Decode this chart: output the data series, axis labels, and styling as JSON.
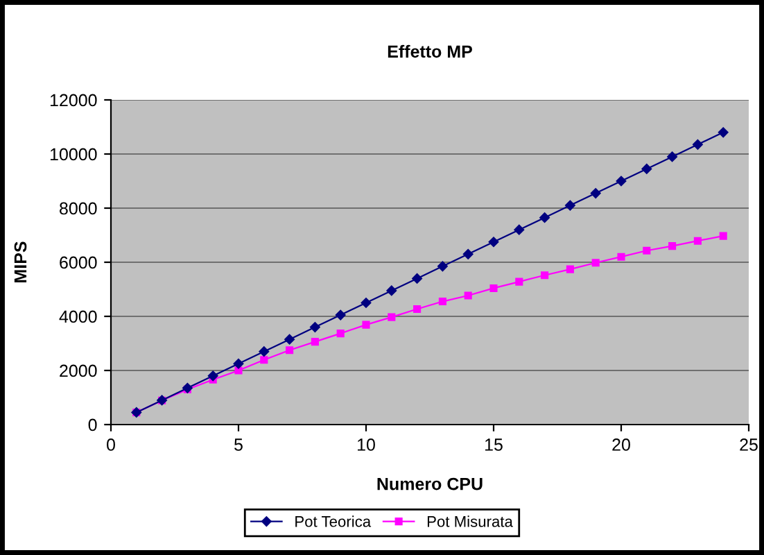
{
  "chart_data": {
    "type": "line",
    "title": "Effetto MP",
    "xlabel": "Numero CPU",
    "ylabel": "MIPS",
    "x": [
      1,
      2,
      3,
      4,
      5,
      6,
      7,
      8,
      9,
      10,
      11,
      12,
      13,
      14,
      15,
      16,
      17,
      18,
      19,
      20,
      21,
      22,
      23,
      24
    ],
    "series": [
      {
        "name": "Pot Teorica",
        "color": "#000080",
        "marker": "diamond",
        "values": [
          450,
          900,
          1350,
          1800,
          2250,
          2700,
          3150,
          3600,
          4050,
          4500,
          4950,
          5400,
          5850,
          6300,
          6750,
          7200,
          7650,
          8100,
          8550,
          9000,
          9450,
          9900,
          10350,
          10800
        ]
      },
      {
        "name": "Pot Misurata",
        "color": "#ff00ff",
        "marker": "square",
        "values": [
          450,
          890,
          1300,
          1660,
          2000,
          2390,
          2750,
          3060,
          3370,
          3690,
          3970,
          4270,
          4550,
          4770,
          5040,
          5280,
          5520,
          5740,
          5980,
          6200,
          6430,
          6600,
          6790,
          6970
        ]
      }
    ],
    "xlim": [
      0,
      25
    ],
    "xticks": [
      0,
      5,
      10,
      15,
      20,
      25
    ],
    "ylim": [
      0,
      12000
    ],
    "yticks": [
      0,
      2000,
      4000,
      6000,
      8000,
      10000,
      12000
    ],
    "grid": "y",
    "legend": "bottom",
    "line_style": "solid"
  }
}
